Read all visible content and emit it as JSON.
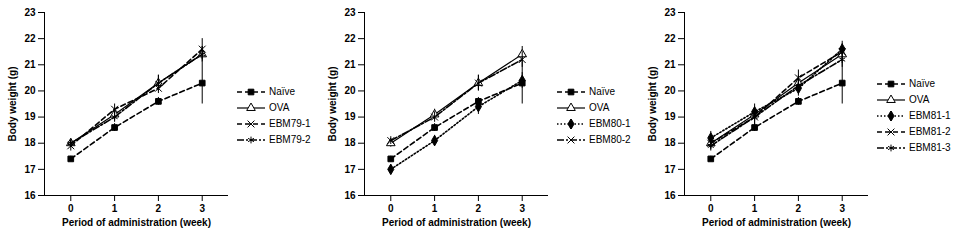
{
  "chart_data": [
    {
      "type": "line",
      "y_label": "Body weight (g)",
      "x_label": "Period of administration (week)",
      "x": [
        0,
        1,
        2,
        3
      ],
      "xlim": [
        -0.6,
        3.6
      ],
      "xticks": [
        0,
        1,
        2,
        3
      ],
      "ylim": [
        16,
        23
      ],
      "yticks": [
        16,
        17,
        18,
        19,
        20,
        21,
        22,
        23
      ],
      "grid": false,
      "legend": "right",
      "series": [
        {
          "name": "Naïve",
          "color": "#000000",
          "marker": "square",
          "line_style": "dashed",
          "values": [
            17.4,
            18.6,
            19.6,
            20.3
          ],
          "errors": [
            0.1,
            0.15,
            0.15,
            0.8
          ]
        },
        {
          "name": "OVA",
          "color": "#000000",
          "marker": "triangle",
          "line_style": "solid",
          "values": [
            18.0,
            19.1,
            20.3,
            21.4
          ],
          "errors": [
            0.15,
            0.2,
            0.3,
            0.3
          ]
        },
        {
          "name": "EBM79-1",
          "color": "#000000",
          "marker": "times",
          "line_style": "dashed",
          "values": [
            17.9,
            19.3,
            20.1,
            21.6
          ],
          "errors": [
            0.2,
            0.2,
            0.2,
            0.4
          ]
        },
        {
          "name": "EBM79-2",
          "color": "#000000",
          "marker": "asterisk",
          "line_style": "dashdot",
          "values": [
            18.0,
            19.0,
            20.3,
            21.4
          ],
          "errors": [
            0.15,
            0.2,
            0.3,
            0.3
          ]
        }
      ]
    },
    {
      "type": "line",
      "y_label": "Body weight (g)",
      "x_label": "Period of administration (week)",
      "x": [
        0,
        1,
        2,
        3
      ],
      "xlim": [
        -0.6,
        3.6
      ],
      "xticks": [
        0,
        1,
        2,
        3
      ],
      "ylim": [
        16,
        23
      ],
      "yticks": [
        16,
        17,
        18,
        19,
        20,
        21,
        22,
        23
      ],
      "grid": false,
      "legend": "right",
      "series": [
        {
          "name": "Naïve",
          "color": "#000000",
          "marker": "square",
          "line_style": "dashed",
          "values": [
            17.4,
            18.6,
            19.6,
            20.3
          ],
          "errors": [
            0.1,
            0.15,
            0.15,
            0.8
          ]
        },
        {
          "name": "OVA",
          "color": "#000000",
          "marker": "triangle",
          "line_style": "solid",
          "values": [
            18.0,
            19.1,
            20.3,
            21.4
          ],
          "errors": [
            0.15,
            0.2,
            0.3,
            0.3
          ]
        },
        {
          "name": "EBM80-1",
          "color": "#000000",
          "marker": "diamond",
          "line_style": "dotted",
          "values": [
            17.0,
            18.1,
            19.4,
            20.4
          ],
          "errors": [
            0.15,
            0.2,
            0.3,
            0.3
          ]
        },
        {
          "name": "EBM80-2",
          "color": "#000000",
          "marker": "times",
          "line_style": "dashdot",
          "values": [
            18.1,
            19.0,
            20.3,
            21.2
          ],
          "errors": [
            0.15,
            0.2,
            0.3,
            0.3
          ]
        }
      ]
    },
    {
      "type": "line",
      "y_label": "Body weight (g)",
      "x_label": "Period of administration (week)",
      "x": [
        0,
        1,
        2,
        3
      ],
      "xlim": [
        -0.6,
        3.6
      ],
      "xticks": [
        0,
        1,
        2,
        3
      ],
      "ylim": [
        16,
        23
      ],
      "yticks": [
        16,
        17,
        18,
        19,
        20,
        21,
        22,
        23
      ],
      "grid": false,
      "legend": "right",
      "series": [
        {
          "name": "Naïve",
          "color": "#000000",
          "marker": "square",
          "line_style": "dashed",
          "values": [
            17.4,
            18.6,
            19.6,
            20.3
          ],
          "errors": [
            0.1,
            0.15,
            0.15,
            0.8
          ]
        },
        {
          "name": "OVA",
          "color": "#000000",
          "marker": "triangle",
          "line_style": "solid",
          "values": [
            18.0,
            19.1,
            20.3,
            21.4
          ],
          "errors": [
            0.15,
            0.2,
            0.3,
            0.3
          ]
        },
        {
          "name": "EBM81-1",
          "color": "#000000",
          "marker": "diamond",
          "line_style": "dotted",
          "values": [
            18.2,
            19.2,
            20.1,
            21.6
          ],
          "errors": [
            0.25,
            0.3,
            0.3,
            0.3
          ]
        },
        {
          "name": "EBM81-2",
          "color": "#000000",
          "marker": "times",
          "line_style": "dashed",
          "values": [
            18.0,
            19.0,
            20.5,
            21.5
          ],
          "errors": [
            0.2,
            0.3,
            0.3,
            0.3
          ]
        },
        {
          "name": "EBM81-3",
          "color": "#000000",
          "marker": "asterisk",
          "line_style": "dashdot",
          "values": [
            17.9,
            19.0,
            20.2,
            21.2
          ],
          "errors": [
            0.2,
            0.3,
            0.3,
            0.3
          ]
        }
      ]
    }
  ]
}
